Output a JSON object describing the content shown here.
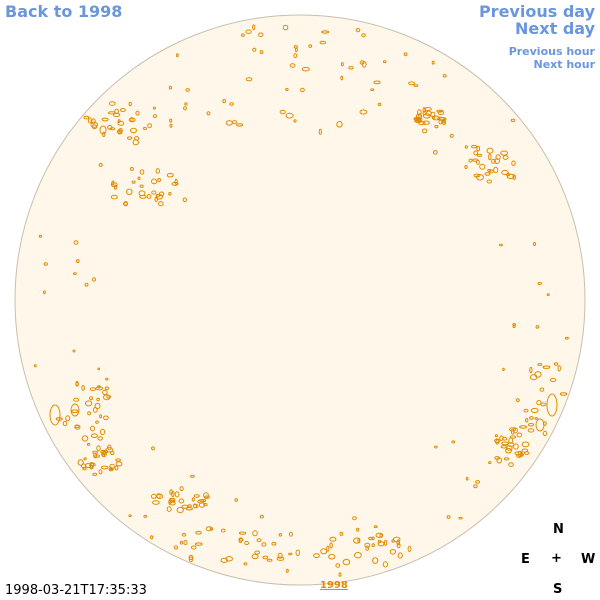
{
  "nav": {
    "back_label": "Back to 1998",
    "prev_day_label": "Previous day",
    "next_day_label": "Next day",
    "prev_hour_label": "Previous hour",
    "next_hour_label": "Next hour"
  },
  "compass": {
    "north": "N",
    "east": "E",
    "center": "+",
    "west": "W",
    "south": "S"
  },
  "timestamp": "1998-03-21T17:35:33",
  "year_link": "1998",
  "colors": {
    "disk_fill": "#fff8ea",
    "disk_edge": "#c8bfae",
    "feature": "#e08a00",
    "link": "#6a96de"
  }
}
